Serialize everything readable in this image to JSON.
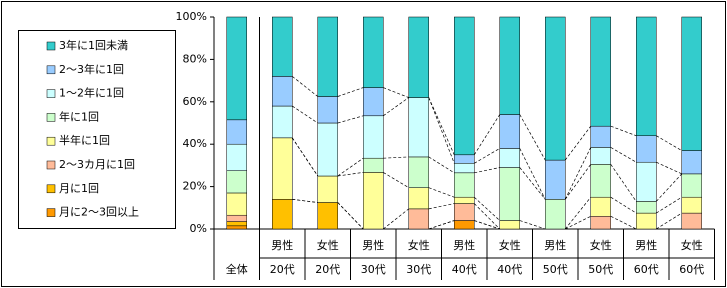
{
  "chart_data": {
    "type": "stacked_bar_100",
    "categories": [
      [
        "全体"
      ],
      [
        "男性",
        "20代"
      ],
      [
        "女性",
        "20代"
      ],
      [
        "男性",
        "30代"
      ],
      [
        "女性",
        "30代"
      ],
      [
        "男性",
        "40代"
      ],
      [
        "女性",
        "40代"
      ],
      [
        "男性",
        "50代"
      ],
      [
        "女性",
        "50代"
      ],
      [
        "男性",
        "60代"
      ],
      [
        "女性",
        "60代"
      ]
    ],
    "series": [
      {
        "name": "月に2～3回以上",
        "color": "#FF9900",
        "values": [
          1.5,
          0,
          0,
          0,
          0,
          4,
          0,
          0,
          0,
          0,
          0
        ]
      },
      {
        "name": "月に1回",
        "color": "#FFC000",
        "values": [
          2,
          14,
          12.5,
          0,
          0,
          0,
          0,
          0,
          0,
          0,
          0
        ]
      },
      {
        "name": "2～3カ月に1回",
        "color": "#FFBB99",
        "values": [
          3,
          0,
          0,
          0,
          9.5,
          8,
          0,
          0,
          6,
          0,
          7.5
        ]
      },
      {
        "name": "半年に1回",
        "color": "#FFFF99",
        "values": [
          10.5,
          29,
          12.5,
          26.7,
          10,
          3,
          4,
          0,
          9,
          7.5,
          7.5
        ]
      },
      {
        "name": "年に1回",
        "color": "#CCFFCC",
        "values": [
          10.5,
          0,
          0,
          6.7,
          14.5,
          11.5,
          25,
          14,
          15.5,
          5.5,
          11
        ]
      },
      {
        "name": "1～2年に1回",
        "color": "#CCFFFF",
        "values": [
          12.5,
          15,
          25,
          20,
          28,
          4.5,
          9,
          0,
          8,
          18.5,
          0
        ]
      },
      {
        "name": "2～3年に1回",
        "color": "#99CCFF",
        "values": [
          11.5,
          14,
          12.5,
          13.3,
          0,
          4,
          16,
          18.5,
          10,
          12.5,
          11
        ]
      },
      {
        "name": "3年に1回未満",
        "color": "#33CCCC",
        "values": [
          48.5,
          28,
          37.5,
          33.3,
          38,
          65,
          46,
          67.5,
          51.5,
          56,
          63
        ]
      }
    ],
    "ylim": [
      0,
      100
    ],
    "yticks": [
      {
        "value": 0,
        "label": "0%"
      },
      {
        "value": 20,
        "label": "20%"
      },
      {
        "value": 40,
        "label": "40%"
      },
      {
        "value": 60,
        "label": "60%"
      },
      {
        "value": 80,
        "label": "80%"
      },
      {
        "value": 100,
        "label": "100%"
      }
    ],
    "legend": "left"
  }
}
